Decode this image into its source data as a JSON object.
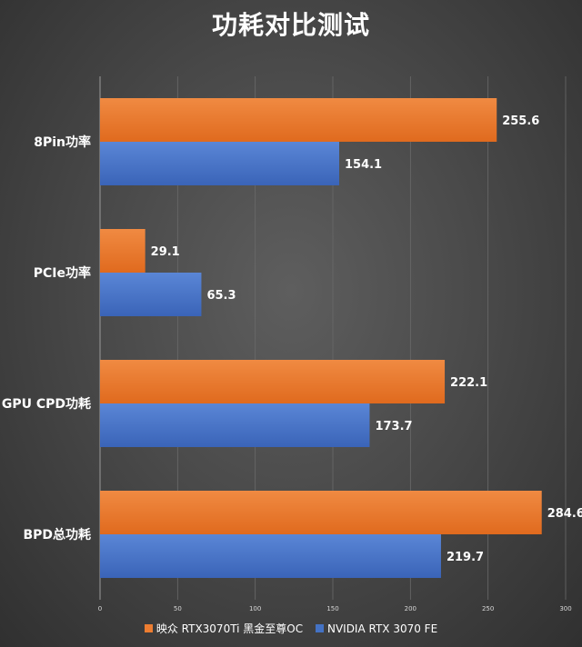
{
  "chart_data": {
    "type": "bar",
    "orientation": "horizontal",
    "title": "功耗对比测试",
    "categories": [
      "8Pin功率",
      "PCIe功率",
      "GPU CPD功耗",
      "BPD总功耗"
    ],
    "series": [
      {
        "name": "映众 RTX3070Ti 黑金至尊OC",
        "color": "#ed7d31",
        "values": [
          255.6,
          29.1,
          222.1,
          284.6
        ]
      },
      {
        "name": "NVIDIA RTX 3070 FE",
        "color": "#4472c4",
        "values": [
          154.1,
          65.3,
          173.7,
          219.7
        ]
      }
    ],
    "xlim": [
      0,
      300
    ],
    "xticks": [
      0,
      50,
      100,
      150,
      200,
      250,
      300
    ],
    "xlabel": "",
    "ylabel": "",
    "grid": true,
    "legend_position": "bottom"
  }
}
